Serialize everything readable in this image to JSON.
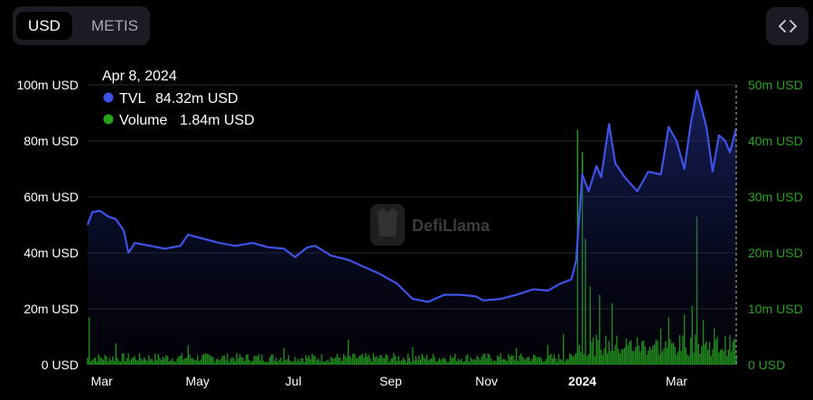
{
  "toggle": {
    "usd_label": "USD",
    "metis_label": "METIS"
  },
  "tooltip": {
    "date": "Apr 8, 2024",
    "tvl_name": "TVL",
    "tvl_value": "84.32m USD",
    "volume_name": "Volume",
    "volume_value": "1.84m USD"
  },
  "watermark": {
    "text": "DefiLlama"
  },
  "colors": {
    "tvl": "#3f53e8",
    "volume": "#25a31a",
    "volume_axis": "#25a31a",
    "grid": "#2a2a2a",
    "background": "#000000"
  },
  "icons": {
    "embed": "code-brackets-icon",
    "watermark": "llama-logo-icon"
  },
  "chart_data": {
    "type": "line",
    "left_axis": {
      "ticks": [
        "0 USD",
        "20m USD",
        "40m USD",
        "60m USD",
        "80m USD",
        "100m USD"
      ],
      "range": [
        0,
        100
      ]
    },
    "right_axis": {
      "ticks": [
        "0 USD",
        "10m USD",
        "20m USD",
        "30m USD",
        "40m USD",
        "50m USD"
      ],
      "range": [
        0,
        50
      ]
    },
    "x_ticks": [
      "Mar",
      "May",
      "Jul",
      "Sep",
      "Nov",
      "2024",
      "Mar"
    ],
    "x_tick_dates": [
      "2023-03-01",
      "2023-05-01",
      "2023-07-01",
      "2023-09-01",
      "2023-11-01",
      "2024-01-01",
      "2024-03-01"
    ],
    "x_range": [
      "2023-02-20",
      "2024-04-08"
    ],
    "grid": true,
    "tvl": {
      "name": "TVL",
      "units": "m USD",
      "points": [
        [
          "2023-02-20",
          50.0
        ],
        [
          "2023-02-23",
          54.5
        ],
        [
          "2023-02-28",
          55.0
        ],
        [
          "2023-03-05",
          53.0
        ],
        [
          "2023-03-10",
          52.0
        ],
        [
          "2023-03-15",
          48.0
        ],
        [
          "2023-03-18",
          40.0
        ],
        [
          "2023-03-22",
          43.5
        ],
        [
          "2023-04-01",
          42.5
        ],
        [
          "2023-04-10",
          41.5
        ],
        [
          "2023-04-20",
          42.5
        ],
        [
          "2023-04-25",
          46.5
        ],
        [
          "2023-05-05",
          45.0
        ],
        [
          "2023-05-15",
          43.5
        ],
        [
          "2023-05-25",
          42.5
        ],
        [
          "2023-06-05",
          43.5
        ],
        [
          "2023-06-15",
          42.0
        ],
        [
          "2023-06-25",
          41.5
        ],
        [
          "2023-07-02",
          38.5
        ],
        [
          "2023-07-10",
          42.0
        ],
        [
          "2023-07-15",
          42.5
        ],
        [
          "2023-07-25",
          39.0
        ],
        [
          "2023-08-05",
          37.5
        ],
        [
          "2023-08-15",
          35.0
        ],
        [
          "2023-08-25",
          32.5
        ],
        [
          "2023-09-05",
          29.0
        ],
        [
          "2023-09-15",
          23.5
        ],
        [
          "2023-09-25",
          22.5
        ],
        [
          "2023-10-05",
          25.0
        ],
        [
          "2023-10-15",
          25.0
        ],
        [
          "2023-10-25",
          24.5
        ],
        [
          "2023-10-30",
          23.0
        ],
        [
          "2023-11-10",
          23.5
        ],
        [
          "2023-11-20",
          25.0
        ],
        [
          "2023-12-01",
          27.0
        ],
        [
          "2023-12-10",
          26.5
        ],
        [
          "2023-12-18",
          29.0
        ],
        [
          "2023-12-25",
          30.5
        ],
        [
          "2023-12-28",
          37.0
        ],
        [
          "2024-01-01",
          68.0
        ],
        [
          "2024-01-05",
          62.0
        ],
        [
          "2024-01-10",
          71.0
        ],
        [
          "2024-01-13",
          67.0
        ],
        [
          "2024-01-18",
          86.0
        ],
        [
          "2024-01-22",
          72.0
        ],
        [
          "2024-01-28",
          67.0
        ],
        [
          "2024-02-05",
          62.0
        ],
        [
          "2024-02-12",
          69.0
        ],
        [
          "2024-02-20",
          68.0
        ],
        [
          "2024-02-25",
          85.0
        ],
        [
          "2024-03-01",
          80.0
        ],
        [
          "2024-03-06",
          70.0
        ],
        [
          "2024-03-10",
          86.0
        ],
        [
          "2024-03-14",
          98.0
        ],
        [
          "2024-03-20",
          85.0
        ],
        [
          "2024-03-24",
          69.0
        ],
        [
          "2024-03-28",
          82.0
        ],
        [
          "2024-04-01",
          80.0
        ],
        [
          "2024-04-04",
          76.0
        ],
        [
          "2024-04-08",
          84.32
        ]
      ]
    },
    "volume": {
      "name": "Volume",
      "units": "m USD",
      "spikes": [
        [
          "2023-02-21",
          8.5
        ],
        [
          "2023-03-10",
          3.8
        ],
        [
          "2023-04-25",
          3.5
        ],
        [
          "2023-06-25",
          3.0
        ],
        [
          "2023-08-05",
          4.5
        ],
        [
          "2023-09-15",
          3.2
        ],
        [
          "2023-11-20",
          3.0
        ],
        [
          "2023-12-10",
          3.5
        ],
        [
          "2023-12-20",
          5.5
        ],
        [
          "2023-12-29",
          42.0
        ],
        [
          "2024-01-01",
          38.0
        ],
        [
          "2024-01-03",
          22.5
        ],
        [
          "2024-01-06",
          14.0
        ],
        [
          "2024-01-12",
          12.5
        ],
        [
          "2024-01-20",
          11.0
        ],
        [
          "2024-02-20",
          6.5
        ],
        [
          "2024-02-25",
          8.5
        ],
        [
          "2024-03-06",
          9.0
        ],
        [
          "2024-03-11",
          10.5
        ],
        [
          "2024-03-14",
          26.5
        ],
        [
          "2024-03-18",
          8.0
        ],
        [
          "2024-03-25",
          6.5
        ],
        [
          "2024-04-08",
          1.84
        ]
      ],
      "baseline": 1.5
    }
  }
}
